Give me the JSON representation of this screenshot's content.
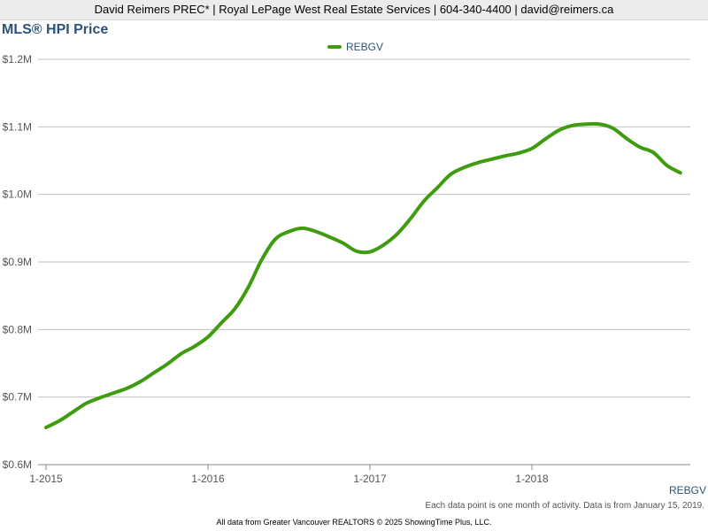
{
  "header": {
    "text": "David Reimers PREC* | Royal LePage West Real Estate Services | 604-340-4400 | david@reimers.ca"
  },
  "chart_title": "MLS® HPI Price",
  "corner_label": "REBGV",
  "footnote": "Each data point is one month of activity. Data is from January 15, 2019.",
  "source_line": "All data from Greater Vancouver REALTORS © 2025 ShowingTime Plus, LLC.",
  "colors": {
    "series": "#3f9b10",
    "title": "#2c5278",
    "grid": "#c0c0c0"
  },
  "chart_data": {
    "type": "line",
    "title": "MLS® HPI Price",
    "xlabel": "",
    "ylabel": "",
    "x": [
      "2015-01",
      "2015-02",
      "2015-03",
      "2015-04",
      "2015-05",
      "2015-06",
      "2015-07",
      "2015-08",
      "2015-09",
      "2015-10",
      "2015-11",
      "2015-12",
      "2016-01",
      "2016-02",
      "2016-03",
      "2016-04",
      "2016-05",
      "2016-06",
      "2016-07",
      "2016-08",
      "2016-09",
      "2016-10",
      "2016-11",
      "2016-12",
      "2017-01",
      "2017-02",
      "2017-03",
      "2017-04",
      "2017-05",
      "2017-06",
      "2017-07",
      "2017-08",
      "2017-09",
      "2017-10",
      "2017-11",
      "2017-12",
      "2018-01",
      "2018-02",
      "2018-03",
      "2018-04",
      "2018-05",
      "2018-06",
      "2018-07",
      "2018-08",
      "2018-09",
      "2018-10",
      "2018-11",
      "2018-12"
    ],
    "series": [
      {
        "name": "REBGV",
        "color": "#3f9b10",
        "values": [
          0.655,
          0.665,
          0.678,
          0.691,
          0.699,
          0.706,
          0.713,
          0.723,
          0.736,
          0.749,
          0.764,
          0.775,
          0.789,
          0.81,
          0.831,
          0.863,
          0.904,
          0.934,
          0.945,
          0.95,
          0.945,
          0.937,
          0.928,
          0.916,
          0.915,
          0.925,
          0.941,
          0.964,
          0.99,
          1.01,
          1.03,
          1.04,
          1.047,
          1.052,
          1.057,
          1.061,
          1.068,
          1.082,
          1.095,
          1.102,
          1.104,
          1.104,
          1.098,
          1.083,
          1.07,
          1.062,
          1.043,
          1.032
        ]
      }
    ],
    "y_ticks": [
      0.6,
      0.7,
      0.8,
      0.9,
      1.0,
      1.1,
      1.2
    ],
    "y_tick_labels": [
      "$0.6M",
      "$0.7M",
      "$0.8M",
      "$0.9M",
      "$1.0M",
      "$1.1M",
      "$1.2M"
    ],
    "ylim": [
      0.6,
      1.2
    ],
    "x_ticks": [
      "2015-01",
      "2016-01",
      "2017-01",
      "2018-01"
    ],
    "x_tick_labels": [
      "1-2015",
      "1-2016",
      "1-2017",
      "1-2018"
    ],
    "grid": true,
    "legend_position": "top-center",
    "legend": [
      "REBGV"
    ]
  }
}
